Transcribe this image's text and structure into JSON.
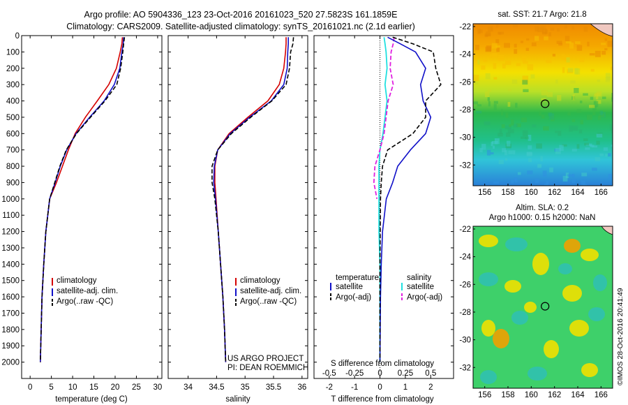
{
  "header": {
    "line1": "Argo profile: AO 5904336_123 23-Oct-2016 20161023_520 27.5823S 161.1859E",
    "line2": "Climatology: CARS2009. Satellite-adjusted climatology: synTS_20161021.nc (2.1d earlier)"
  },
  "colors": {
    "climatology": "#d40000",
    "satellite": "#1010c8",
    "argo": "#000000",
    "sal_satellite": "#20e0e0",
    "sal_argo": "#e020e0"
  },
  "chart_data": [
    {
      "type": "line",
      "id": "temperature",
      "xlabel": "temperature (deg C)",
      "ylabel": "",
      "xlim": [
        -2,
        31
      ],
      "ylim": [
        2100,
        0
      ],
      "xticks": [
        0,
        5,
        10,
        15,
        20,
        25,
        30
      ],
      "yticks": [
        0,
        100,
        200,
        300,
        400,
        500,
        600,
        700,
        800,
        900,
        1000,
        1100,
        1200,
        1300,
        1400,
        1500,
        1600,
        1700,
        1800,
        1900,
        2000
      ],
      "legend": [
        "climatology",
        "satellite-adj. clim.",
        "Argo(..raw -QC)"
      ],
      "series": [
        {
          "name": "climatology",
          "x": [
            21.7,
            21.6,
            21.2,
            20.3,
            18.5,
            15.8,
            13.0,
            10.6,
            9.0,
            7.6,
            6.2,
            4.6,
            3.7,
            3.2,
            2.8,
            2.6,
            2.4
          ],
          "y": [
            10,
            50,
            100,
            200,
            300,
            400,
            500,
            600,
            700,
            800,
            900,
            1000,
            1200,
            1400,
            1600,
            1800,
            2000
          ]
        },
        {
          "name": "satellite-adj. clim.",
          "x": [
            22.0,
            21.9,
            21.6,
            21.1,
            19.8,
            17.4,
            14.0,
            10.8,
            8.6,
            7.1,
            5.9,
            4.6,
            3.7,
            3.2,
            2.8,
            2.6,
            2.4
          ],
          "y": [
            10,
            50,
            100,
            200,
            300,
            400,
            500,
            600,
            700,
            800,
            900,
            1000,
            1200,
            1400,
            1600,
            1800,
            2000
          ]
        },
        {
          "name": "Argo(..raw -QC)",
          "x": [
            22.2,
            22.0,
            21.8,
            21.3,
            20.4,
            17.6,
            14.2,
            10.9,
            8.5,
            7.0,
            5.8,
            4.6,
            3.7,
            3.2,
            2.8,
            2.6,
            2.4
          ],
          "y": [
            10,
            50,
            100,
            200,
            300,
            400,
            500,
            600,
            700,
            800,
            900,
            1000,
            1200,
            1400,
            1600,
            1800,
            2000
          ]
        }
      ]
    },
    {
      "type": "line",
      "id": "salinity",
      "xlabel": "salinity",
      "ylabel": "",
      "xlim": [
        33.65,
        36.1
      ],
      "ylim": [
        2100,
        0
      ],
      "xticks": [
        34,
        34.5,
        35,
        35.5,
        36
      ],
      "legend": [
        "climatology",
        "satellite-adj. clim.",
        "Argo(..raw -QC)"
      ],
      "annotation": [
        "US ARGO PROJECT",
        "PI: DEAN ROEMMICH"
      ],
      "series": [
        {
          "name": "climatology",
          "x": [
            35.72,
            35.72,
            35.71,
            35.68,
            35.6,
            35.4,
            35.05,
            34.72,
            34.52,
            34.47,
            34.47,
            34.49,
            34.53,
            34.57,
            34.61,
            34.64,
            34.66
          ],
          "y": [
            10,
            50,
            100,
            200,
            300,
            400,
            500,
            600,
            700,
            800,
            900,
            1000,
            1200,
            1400,
            1600,
            1800,
            2000
          ]
        },
        {
          "name": "satellite-adj. clim.",
          "x": [
            35.76,
            35.76,
            35.75,
            35.74,
            35.68,
            35.46,
            35.08,
            34.74,
            34.52,
            34.46,
            34.45,
            34.48,
            34.53,
            34.57,
            34.61,
            34.64,
            34.66
          ],
          "y": [
            10,
            50,
            100,
            200,
            300,
            400,
            500,
            600,
            700,
            800,
            900,
            1000,
            1200,
            1400,
            1600,
            1800,
            2000
          ]
        },
        {
          "name": "Argo(..raw -QC)",
          "x": [
            35.85,
            35.84,
            35.8,
            35.78,
            35.72,
            35.47,
            35.1,
            34.76,
            34.52,
            34.42,
            34.42,
            34.47,
            34.53,
            34.57,
            34.61,
            34.64,
            34.66
          ],
          "y": [
            10,
            50,
            100,
            200,
            300,
            400,
            500,
            600,
            700,
            800,
            900,
            1000,
            1200,
            1400,
            1600,
            1800,
            2000
          ]
        }
      ]
    },
    {
      "type": "line",
      "id": "difference",
      "xlabel": "T difference from climatology",
      "xlabel2": "S difference from climatology",
      "xlim": [
        -2.6,
        2.9
      ],
      "ylim": [
        2100,
        0
      ],
      "xticks_T": [
        -2,
        -1,
        0,
        1,
        2
      ],
      "xticks_S": [
        -0.5,
        -0.25,
        0,
        0.25,
        0.5
      ],
      "legend_temperature": {
        "title": "temperature",
        "items": [
          "satellite",
          "Argo(-adj)"
        ]
      },
      "legend_salinity": {
        "title": "salinity",
        "items": [
          "satellite",
          "Argo(-adj)"
        ]
      },
      "series": [
        {
          "name": "temperature satellite",
          "x": [
            0.3,
            0.8,
            1.4,
            1.8,
            1.6,
            1.7,
            2.0,
            1.8,
            1.2,
            0.7,
            0.5,
            0.25,
            0.1,
            0.05,
            0.02,
            0.01,
            0.0
          ],
          "y": [
            10,
            50,
            100,
            200,
            300,
            400,
            500,
            600,
            700,
            800,
            900,
            1000,
            1200,
            1400,
            1600,
            1800,
            2000
          ]
        },
        {
          "name": "temperature Argo(-adj)",
          "x": [
            0.5,
            1.3,
            2.1,
            2.2,
            2.4,
            1.8,
            1.8,
            1.3,
            0.3,
            0.1,
            0.05,
            0.02,
            0.01,
            0.0,
            0.0,
            0.0,
            0.0
          ],
          "y": [
            10,
            50,
            100,
            200,
            300,
            400,
            500,
            600,
            700,
            800,
            900,
            1000,
            1200,
            1400,
            1600,
            1800,
            2000
          ]
        },
        {
          "name": "salinity satellite",
          "x": [
            0.04,
            0.05,
            0.06,
            0.07,
            0.05,
            0.07,
            0.05,
            0.03,
            0.0,
            -0.01,
            -0.01,
            -0.01,
            -0.01,
            0.0,
            0.0,
            0.0,
            0.0
          ],
          "y": [
            10,
            50,
            100,
            200,
            300,
            400,
            500,
            600,
            700,
            800,
            900,
            1000,
            1200,
            1400,
            1600,
            1800,
            2000
          ]
        },
        {
          "name": "salinity Argo(-adj)",
          "x": [
            0.14,
            0.13,
            0.11,
            0.1,
            0.13,
            0.08,
            0.06,
            0.04,
            0.0,
            -0.05,
            -0.06,
            -0.03
          ],
          "y": [
            10,
            50,
            100,
            200,
            300,
            400,
            500,
            600,
            700,
            800,
            900,
            1000
          ]
        }
      ]
    },
    {
      "type": "heatmap",
      "id": "sst-map",
      "title": "sat. SST: 21.7  Argo: 21.8",
      "xlim": [
        155,
        167
      ],
      "ylim": [
        -33.5,
        -21.8
      ],
      "xticks": [
        156,
        158,
        160,
        162,
        164,
        166
      ],
      "yticks": [
        -22,
        -24,
        -26,
        -28,
        -30,
        -32
      ],
      "marker": {
        "lon": 161.19,
        "lat": -27.58
      }
    },
    {
      "type": "heatmap",
      "id": "sla-map",
      "title": "Altim. SLA: 0.2",
      "subtitle": "Argo h1000: 0.15  h2000: NaN",
      "xlim": [
        155,
        167
      ],
      "ylim": [
        -33.5,
        -21.8
      ],
      "xticks": [
        156,
        158,
        160,
        162,
        164,
        166
      ],
      "yticks": [
        -22,
        -24,
        -26,
        -28,
        -30,
        -32
      ],
      "marker": {
        "lon": 161.19,
        "lat": -27.58
      }
    }
  ],
  "credit": "©IMOS 28-Oct-2016 20:41:49"
}
